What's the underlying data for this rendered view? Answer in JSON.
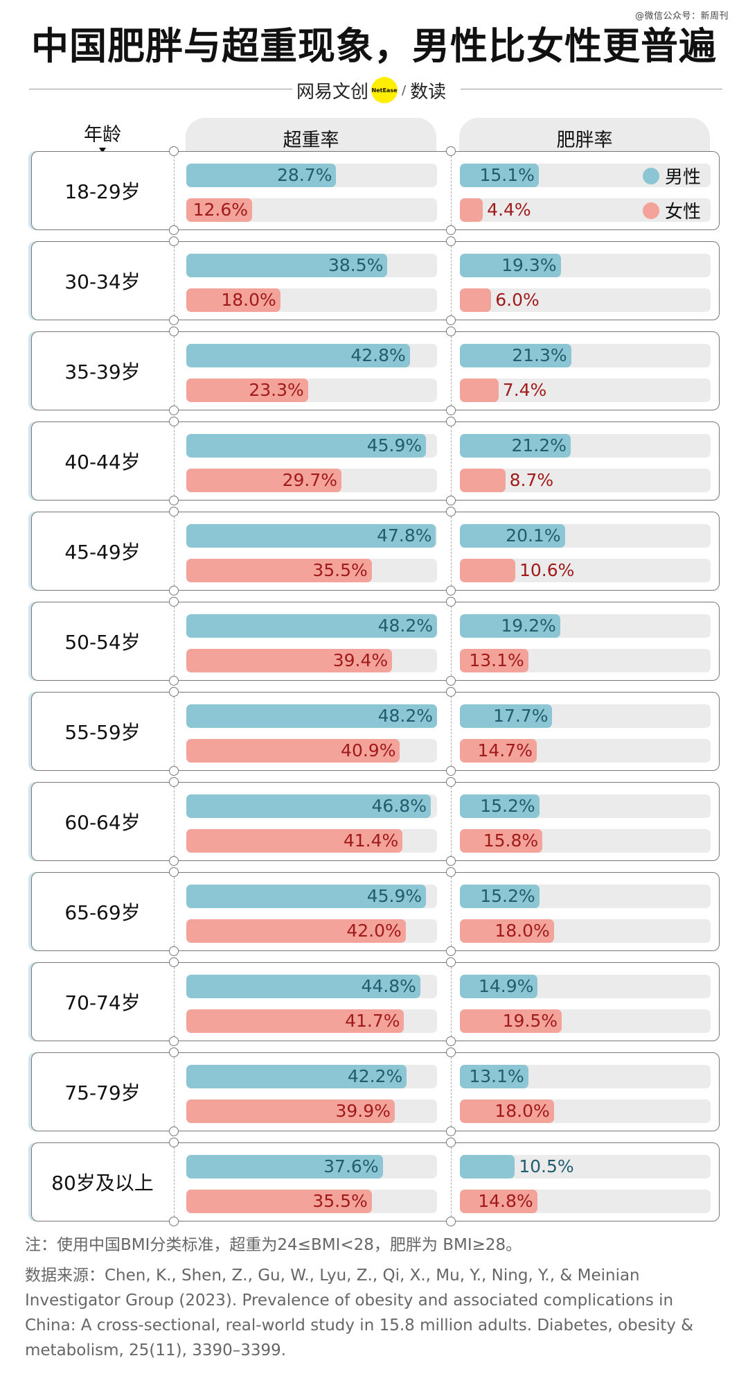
{
  "watermark": "@微信公众号：新周刊",
  "title": "中国肥胖与超重现象，男性比女性更普遍",
  "brand": {
    "name": "网易文创",
    "badge": "NetEase",
    "sub": "数读"
  },
  "headers": {
    "age": "年龄",
    "overweight": "超重率",
    "obesity": "肥胖率"
  },
  "legend": {
    "male": "男性",
    "female": "女性"
  },
  "colors": {
    "male": "#8cc5d3",
    "female": "#f3a39a",
    "male_text": "#1f5d6e",
    "female_text": "#a11a1a"
  },
  "chart_data": {
    "type": "bar",
    "categories": [
      "18-29岁",
      "30-34岁",
      "35-39岁",
      "40-44岁",
      "45-49岁",
      "50-54岁",
      "55-59岁",
      "60-64岁",
      "65-69岁",
      "70-74岁",
      "75-79岁",
      "80岁及以上"
    ],
    "panels": [
      {
        "name": "超重率",
        "series": [
          {
            "name": "男性",
            "values": [
              28.7,
              38.5,
              42.8,
              45.9,
              47.8,
              48.2,
              48.2,
              46.8,
              45.9,
              44.8,
              42.2,
              37.6
            ]
          },
          {
            "name": "女性",
            "values": [
              12.6,
              18.0,
              23.3,
              29.7,
              35.5,
              39.4,
              40.9,
              41.4,
              42.0,
              41.7,
              39.9,
              35.5
            ]
          }
        ]
      },
      {
        "name": "肥胖率",
        "series": [
          {
            "name": "男性",
            "values": [
              15.1,
              19.3,
              21.3,
              21.2,
              20.1,
              19.2,
              17.7,
              15.2,
              15.2,
              14.9,
              13.1,
              10.5
            ]
          },
          {
            "name": "女性",
            "values": [
              4.4,
              6.0,
              7.4,
              8.7,
              10.6,
              13.1,
              14.7,
              15.8,
              18.0,
              19.5,
              18.0,
              14.8
            ]
          }
        ]
      }
    ],
    "value_suffix": "%",
    "xlim": [
      0,
      48
    ]
  },
  "note": "注：使用中国BMI分类标准，超重为24≤BMI<28，肥胖为 BMI≥28。",
  "source": "数据来源：Chen, K., Shen, Z., Gu, W., Lyu, Z., Qi, X., Mu, Y., Ning, Y., & Meinian Investigator Group (2023). Prevalence of obesity and associated complications in China: A cross-sectional, real-world study in 15.8 million adults. Diabetes, obesity & metabolism, 25(11), 3390–3399."
}
